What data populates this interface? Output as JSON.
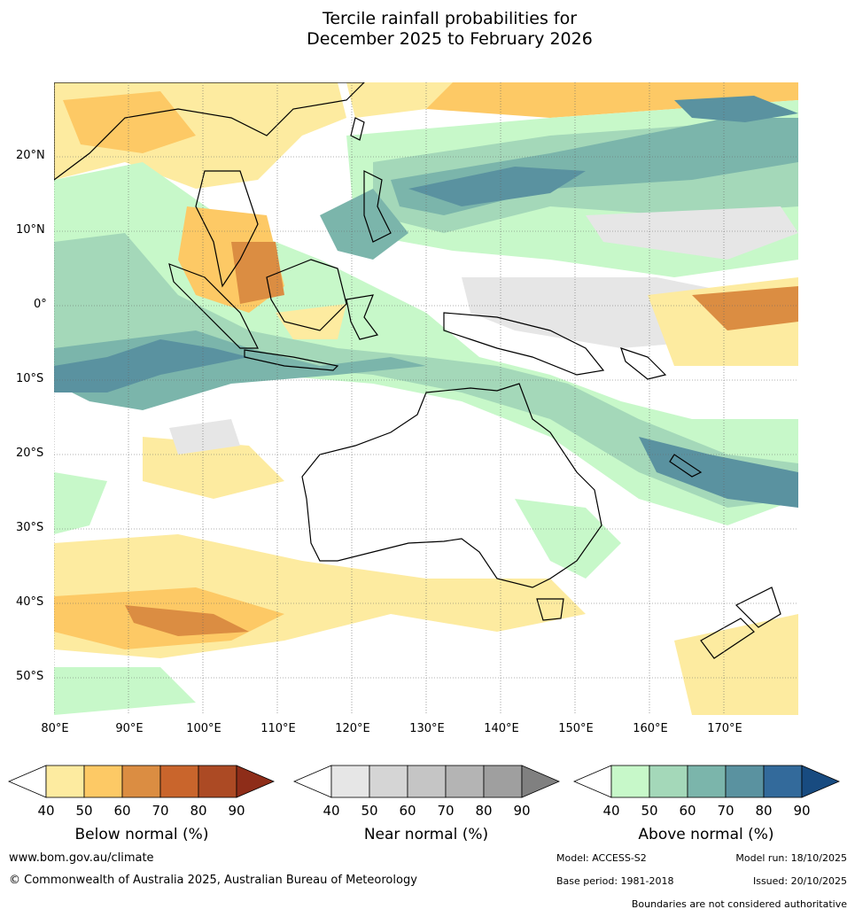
{
  "title_line1": "Tercile rainfall probabilities for",
  "title_line2": "December 2025 to February 2026",
  "lat_labels": [
    "20°N",
    "10°N",
    "0°",
    "10°S",
    "20°S",
    "30°S",
    "40°S",
    "50°S"
  ],
  "lon_labels": [
    "80°E",
    "90°E",
    "100°E",
    "110°E",
    "120°E",
    "130°E",
    "140°E",
    "150°E",
    "160°E",
    "170°E"
  ],
  "colorbars": [
    {
      "name": "below",
      "title": "Below normal (%)",
      "ticks": [
        "40",
        "50",
        "60",
        "70",
        "80",
        "90"
      ],
      "colors": [
        "#fdeba0",
        "#fdc965",
        "#db8d42",
        "#c9652c",
        "#ac4a24",
        "#8e2d19"
      ]
    },
    {
      "name": "near",
      "title": "Near normal (%)",
      "ticks": [
        "40",
        "50",
        "60",
        "70",
        "80",
        "90"
      ],
      "colors": [
        "#e6e6e6",
        "#d5d5d5",
        "#c5c5c5",
        "#b4b4b4",
        "#9f9f9f",
        "#808080"
      ]
    },
    {
      "name": "above",
      "title": "Above normal (%)",
      "ticks": [
        "40",
        "50",
        "60",
        "70",
        "80",
        "90"
      ],
      "colors": [
        "#c7f8c9",
        "#a4d8b9",
        "#7bb5ab",
        "#5a92a0",
        "#336a9b",
        "#184b80"
      ]
    }
  ],
  "footer": {
    "website": "www.bom.gov.au/climate",
    "copyright": "© Commonwealth of Australia 2025, Australian Bureau of Meteorology",
    "model": "Model: ACCESS-S2",
    "model_run": "Model run: 18/10/2025",
    "base_period": "Base period: 1981-2018",
    "issued": "Issued: 20/10/2025",
    "disclaimer": "Boundaries are not considered authoritative"
  }
}
